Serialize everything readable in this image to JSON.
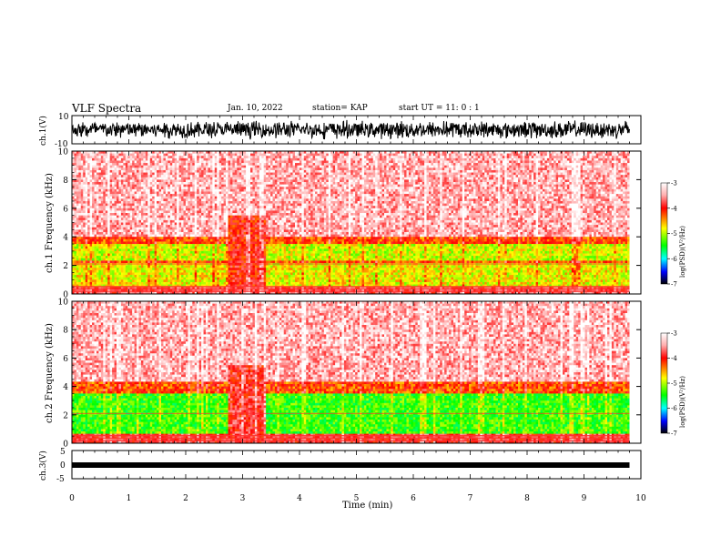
{
  "header": {
    "title": "VLF Spectra",
    "date": "Jan. 10, 2022",
    "station": "station= KAP",
    "start": "start UT =  11: 0  : 1"
  },
  "colorbar": {
    "label": "log(PSD)(V²/Hz)",
    "ticks": [
      "-3",
      "-4",
      "-5",
      "-6",
      "-7"
    ],
    "values": [
      -3,
      -4,
      -5,
      -6,
      -7
    ],
    "colors": [
      "#ffffff",
      "#ff0000",
      "#ffff00",
      "#00ff00",
      "#00ffff",
      "#0000ff",
      "#000000"
    ]
  },
  "chart_data": [
    {
      "type": "line",
      "panel": "ch1-waveform",
      "ylabel": "ch.1(V)",
      "ylim": [
        -10,
        10
      ],
      "yticks": [
        "10",
        "-10"
      ],
      "xlim": [
        0,
        10
      ],
      "description": "dense black waveform oscillating within approximately -7 to +7 V across 0–9.8 min"
    },
    {
      "type": "heatmap",
      "panel": "ch1-spectrogram",
      "ylabel": "ch.1  Frequency (kHz)",
      "ylim": [
        0,
        10
      ],
      "yticks": [
        "10",
        "8",
        "6",
        "4",
        "2",
        "0"
      ],
      "xlim": [
        0,
        10
      ],
      "data_end_min": 9.8,
      "bands": [
        {
          "f_min": 4.0,
          "f_max": 10.0,
          "level": -3.3
        },
        {
          "f_min": 3.5,
          "f_max": 4.0,
          "level": -4.0
        },
        {
          "f_min": 2.4,
          "f_max": 3.5,
          "level": -4.6
        },
        {
          "f_min": 2.1,
          "f_max": 2.4,
          "level": -4.0
        },
        {
          "f_min": 0.5,
          "f_max": 2.1,
          "level": -4.5
        },
        {
          "f_min": 0.0,
          "f_max": 0.5,
          "level": -3.6
        }
      ],
      "disturbance": {
        "t_min": 2.75,
        "t_max": 3.4,
        "level": -3.8
      }
    },
    {
      "type": "heatmap",
      "panel": "ch2-spectrogram",
      "ylabel": "ch.2  Frequency (kHz)",
      "ylim": [
        0,
        10
      ],
      "yticks": [
        "10",
        "8",
        "6",
        "4",
        "2",
        "0"
      ],
      "xlim": [
        0,
        10
      ],
      "data_end_min": 9.8,
      "bands": [
        {
          "f_min": 4.3,
          "f_max": 10.0,
          "level": -3.3
        },
        {
          "f_min": 3.5,
          "f_max": 4.3,
          "level": -4.0
        },
        {
          "f_min": 0.6,
          "f_max": 3.5,
          "level": -5.0
        },
        {
          "f_min": 0.0,
          "f_max": 0.6,
          "level": -3.7
        }
      ],
      "disturbance": {
        "t_min": 2.75,
        "t_max": 3.4,
        "level": -3.7
      }
    },
    {
      "type": "line",
      "panel": "ch3-waveform",
      "ylabel": "ch.3(V)",
      "ylim": [
        -5,
        5
      ],
      "yticks": [
        "5",
        "0",
        "-5"
      ],
      "xlim": [
        0,
        10
      ],
      "description": "flat thick trace near 0.3 V from 0 to 9.8 min"
    }
  ],
  "xaxis": {
    "label": "Time (min)",
    "ticks": [
      "0",
      "1",
      "2",
      "3",
      "4",
      "5",
      "6",
      "7",
      "8",
      "9",
      "10"
    ]
  }
}
